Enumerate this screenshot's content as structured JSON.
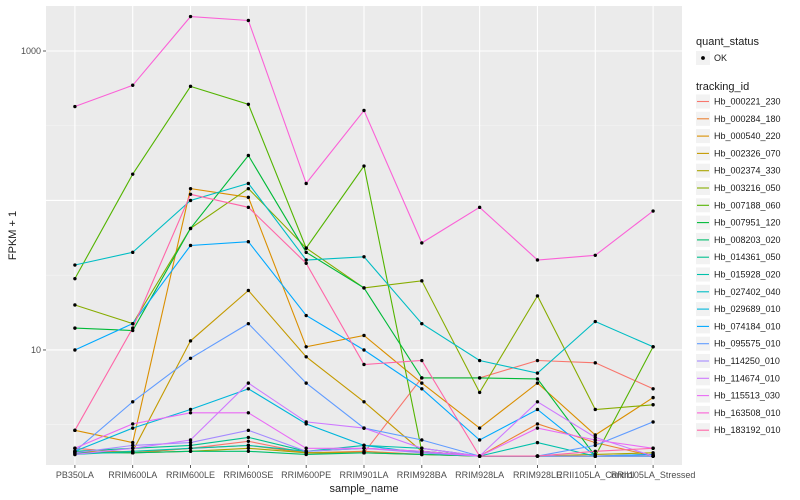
{
  "chart_data": {
    "type": "line",
    "xlabel": "sample_name",
    "ylabel": "FPKM + 1",
    "y_scale": "log10",
    "ylim": [
      1.7,
      2000
    ],
    "y_ticks": [
      10,
      1000
    ],
    "y_tick_labels": [
      "10",
      "1000"
    ],
    "grid": true,
    "legend_position": "right",
    "categories": [
      "PB350LA",
      "RRIM600LA",
      "RRIM600LE",
      "RRIM600SE",
      "RRIM600PE",
      "RRIM901LA",
      "RRIM928BA",
      "RRIM928LA",
      "RRIM928LE",
      "RRII105LA_Control",
      "RRII105LA_Stressed"
    ],
    "shape_legend": {
      "title": "quant_status",
      "items": [
        "OK"
      ]
    },
    "series_legend_title": "tracking_id",
    "series": [
      {
        "name": "Hb_000221_230",
        "color": "#F8766D",
        "values": [
          2.2,
          2.05,
          2.2,
          2.45,
          2.05,
          2.05,
          6.5,
          6.5,
          8.5,
          8.2,
          5.5
        ]
      },
      {
        "name": "Hb_000284_180",
        "color": "#EB8335",
        "values": [
          2.1,
          2.05,
          2.2,
          2.3,
          2.05,
          2.1,
          2.0,
          1.95,
          3.2,
          2.4,
          1.95
        ]
      },
      {
        "name": "Hb_000540_220",
        "color": "#DA8F00",
        "values": [
          2.9,
          2.4,
          120,
          105,
          10.5,
          12.5,
          6.0,
          3.0,
          6.0,
          2.7,
          4.8
        ]
      },
      {
        "name": "Hb_002326_070",
        "color": "#C49A00",
        "values": [
          2.05,
          2.1,
          11.5,
          25,
          9.0,
          4.5,
          2.1,
          1.95,
          1.95,
          1.95,
          2.0
        ]
      },
      {
        "name": "Hb_002374_330",
        "color": "#A9A400",
        "values": [
          2.1,
          2.05,
          2.1,
          2.2,
          2.05,
          2.05,
          2.0,
          1.95,
          1.95,
          2.0,
          2.05
        ]
      },
      {
        "name": "Hb_003216_050",
        "color": "#87AC00",
        "values": [
          20,
          15,
          65,
          120,
          48,
          26,
          29,
          5.2,
          23,
          4.0,
          4.3
        ]
      },
      {
        "name": "Hb_007188_060",
        "color": "#53B400",
        "values": [
          30,
          150,
          580,
          440,
          48,
          170,
          2.1,
          1.95,
          1.95,
          1.95,
          10.5
        ]
      },
      {
        "name": "Hb_007951_120",
        "color": "#00BA38",
        "values": [
          14,
          13.5,
          65,
          200,
          45,
          26,
          6.5,
          6.5,
          6.4,
          1.95,
          1.95
        ]
      },
      {
        "name": "Hb_008203_020",
        "color": "#00BE6C",
        "values": [
          2.05,
          2.05,
          2.1,
          2.1,
          2.0,
          2.05,
          2.0,
          1.95,
          1.95,
          1.95,
          1.95
        ]
      },
      {
        "name": "Hb_014361_050",
        "color": "#00C08E",
        "values": [
          2.1,
          2.2,
          2.3,
          2.6,
          2.1,
          2.2,
          2.1,
          1.95,
          1.95,
          1.95,
          1.95
        ]
      },
      {
        "name": "Hb_015928_020",
        "color": "#00C0AB",
        "values": [
          2.0,
          2.1,
          2.2,
          2.3,
          2.1,
          2.3,
          2.2,
          1.95,
          2.4,
          1.95,
          1.95
        ]
      },
      {
        "name": "Hb_027402_040",
        "color": "#00BDC4",
        "values": [
          37,
          45,
          100,
          130,
          40,
          42,
          15,
          8.5,
          7.0,
          15.5,
          10.5
        ]
      },
      {
        "name": "Hb_029689_010",
        "color": "#00B6DB",
        "values": [
          2.1,
          3.0,
          4.0,
          5.5,
          3.2,
          2.3,
          2.05,
          1.95,
          1.95,
          1.95,
          1.95
        ]
      },
      {
        "name": "Hb_074184_010",
        "color": "#00A9FF",
        "values": [
          10,
          15,
          50,
          53,
          17,
          10,
          5.5,
          2.5,
          4.0,
          1.95,
          2.0
        ]
      },
      {
        "name": "Hb_095575_010",
        "color": "#619CFF",
        "values": [
          2.1,
          4.5,
          8.8,
          15,
          6.0,
          3.0,
          2.5,
          1.95,
          1.95,
          2.3,
          3.3
        ]
      },
      {
        "name": "Hb_114250_010",
        "color": "#A58AFF",
        "values": [
          2.05,
          2.3,
          2.4,
          2.9,
          2.1,
          2.2,
          2.05,
          1.95,
          1.95,
          1.95,
          1.95
        ]
      },
      {
        "name": "Hb_114674_010",
        "color": "#CE79FF",
        "values": [
          2.0,
          2.2,
          2.5,
          6.0,
          3.3,
          3.0,
          2.2,
          1.95,
          4.5,
          2.6,
          1.95
        ]
      },
      {
        "name": "Hb_115513_030",
        "color": "#E96BF5",
        "values": [
          2.2,
          3.2,
          3.8,
          3.8,
          2.2,
          2.2,
          2.1,
          1.95,
          3.0,
          2.5,
          2.2
        ]
      },
      {
        "name": "Hb_163508_010",
        "color": "#FB61D7",
        "values": [
          425,
          590,
          1700,
          1600,
          130,
          400,
          52,
          90,
          40,
          43,
          85
        ]
      },
      {
        "name": "Hb_183192_010",
        "color": "#FF66A8",
        "values": [
          2.9,
          14,
          110,
          90,
          38,
          8.0,
          8.5,
          1.95,
          1.95,
          2.1,
          2.2
        ]
      }
    ]
  }
}
